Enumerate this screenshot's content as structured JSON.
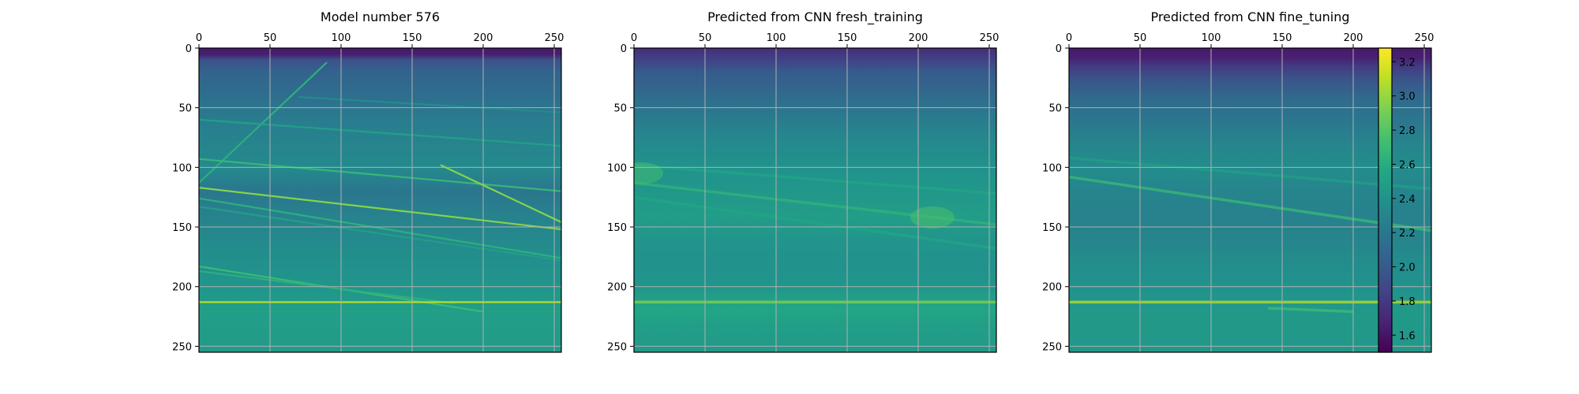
{
  "chart_data": [
    {
      "type": "heatmap",
      "title": "Model number 576",
      "x_ticks": [
        0,
        50,
        100,
        150,
        200,
        250
      ],
      "y_ticks": [
        0,
        50,
        100,
        150,
        200,
        250
      ],
      "xlim": [
        0,
        255
      ],
      "ylim": [
        255,
        0
      ],
      "grid": true,
      "background": {
        "rows": [
          0,
          5,
          10,
          20,
          40,
          60,
          80,
          100,
          120,
          140,
          160,
          180,
          200,
          210,
          220,
          230,
          255
        ],
        "values": [
          1.62,
          1.65,
          1.95,
          2.06,
          2.14,
          2.24,
          2.3,
          2.34,
          2.2,
          2.28,
          2.33,
          2.38,
          2.42,
          2.45,
          2.5,
          2.48,
          2.47
        ]
      },
      "features": [
        {
          "kind": "line",
          "x": [
            0,
            90
          ],
          "y": [
            113,
            12
          ],
          "value": 2.62
        },
        {
          "kind": "line",
          "x": [
            70,
            255
          ],
          "y": [
            41,
            54
          ],
          "value": 2.35
        },
        {
          "kind": "line",
          "x": [
            0,
            255
          ],
          "y": [
            60,
            82
          ],
          "value": 2.5
        },
        {
          "kind": "line",
          "x": [
            0,
            255
          ],
          "y": [
            93,
            120
          ],
          "value": 2.68
        },
        {
          "kind": "line",
          "x": [
            170,
            255
          ],
          "y": [
            98,
            146
          ],
          "value": 2.95
        },
        {
          "kind": "line",
          "x": [
            0,
            255
          ],
          "y": [
            117,
            152
          ],
          "value": 2.95
        },
        {
          "kind": "line",
          "x": [
            0,
            255
          ],
          "y": [
            126,
            176
          ],
          "value": 2.62
        },
        {
          "kind": "line",
          "x": [
            0,
            255
          ],
          "y": [
            133,
            178
          ],
          "value": 2.48
        },
        {
          "kind": "line",
          "x": [
            0,
            200
          ],
          "y": [
            183,
            221
          ],
          "value": 2.7
        },
        {
          "kind": "line",
          "x": [
            0,
            180
          ],
          "y": [
            187,
            214
          ],
          "value": 2.62
        },
        {
          "kind": "line",
          "x": [
            0,
            255
          ],
          "y": [
            213,
            213
          ],
          "value": 3.1
        }
      ]
    },
    {
      "type": "heatmap",
      "title": "Predicted from CNN fresh_training",
      "x_ticks": [
        0,
        50,
        100,
        150,
        200,
        250
      ],
      "y_ticks": [
        0,
        50,
        100,
        150,
        200,
        250
      ],
      "xlim": [
        0,
        255
      ],
      "ylim": [
        255,
        0
      ],
      "grid": true,
      "background": {
        "rows": [
          0,
          10,
          20,
          40,
          60,
          80,
          100,
          120,
          140,
          160,
          180,
          200,
          210,
          220,
          230,
          255
        ],
        "values": [
          1.72,
          1.85,
          2.0,
          2.12,
          2.24,
          2.34,
          2.4,
          2.44,
          2.48,
          2.42,
          2.4,
          2.42,
          2.5,
          2.55,
          2.5,
          2.45
        ]
      },
      "features": [
        {
          "kind": "line",
          "x": [
            0,
            255
          ],
          "y": [
            113,
            148
          ],
          "value": 2.65
        },
        {
          "kind": "line",
          "x": [
            0,
            255
          ],
          "y": [
            125,
            168
          ],
          "value": 2.55
        },
        {
          "kind": "line",
          "x": [
            0,
            255
          ],
          "y": [
            98,
            122
          ],
          "value": 2.55
        },
        {
          "kind": "line",
          "x": [
            0,
            255
          ],
          "y": [
            213,
            213
          ],
          "value": 2.95
        },
        {
          "kind": "blob",
          "x": 5,
          "y": 105,
          "value": 2.75
        },
        {
          "kind": "blob",
          "x": 210,
          "y": 142,
          "value": 2.78
        }
      ]
    },
    {
      "type": "heatmap",
      "title": "Predicted from CNN fine_tuning",
      "x_ticks": [
        0,
        50,
        100,
        150,
        200,
        250
      ],
      "y_ticks": [
        0,
        50,
        100,
        150,
        200,
        250
      ],
      "xlim": [
        0,
        255
      ],
      "ylim": [
        255,
        0
      ],
      "grid": true,
      "background": {
        "rows": [
          0,
          8,
          15,
          25,
          40,
          60,
          80,
          100,
          120,
          140,
          160,
          180,
          200,
          210,
          220,
          230,
          255
        ],
        "values": [
          1.62,
          1.66,
          1.8,
          1.95,
          2.1,
          2.2,
          2.3,
          2.36,
          2.3,
          2.28,
          2.3,
          2.36,
          2.4,
          2.42,
          2.45,
          2.45,
          2.44
        ]
      },
      "features": [
        {
          "kind": "line",
          "x": [
            0,
            255
          ],
          "y": [
            108,
            153
          ],
          "value": 2.7
        },
        {
          "kind": "line",
          "x": [
            0,
            255
          ],
          "y": [
            92,
            118
          ],
          "value": 2.5
        },
        {
          "kind": "line",
          "x": [
            0,
            255
          ],
          "y": [
            213,
            213
          ],
          "value": 3.1
        },
        {
          "kind": "line",
          "x": [
            140,
            200
          ],
          "y": [
            218,
            221
          ],
          "value": 2.72
        }
      ]
    }
  ],
  "colorbar": {
    "colormap": "viridis",
    "vmin": 1.5,
    "vmax": 3.28,
    "ticks": [
      "1.6",
      "1.8",
      "2.0",
      "2.2",
      "2.4",
      "2.6",
      "2.8",
      "3.0",
      "3.2"
    ]
  }
}
